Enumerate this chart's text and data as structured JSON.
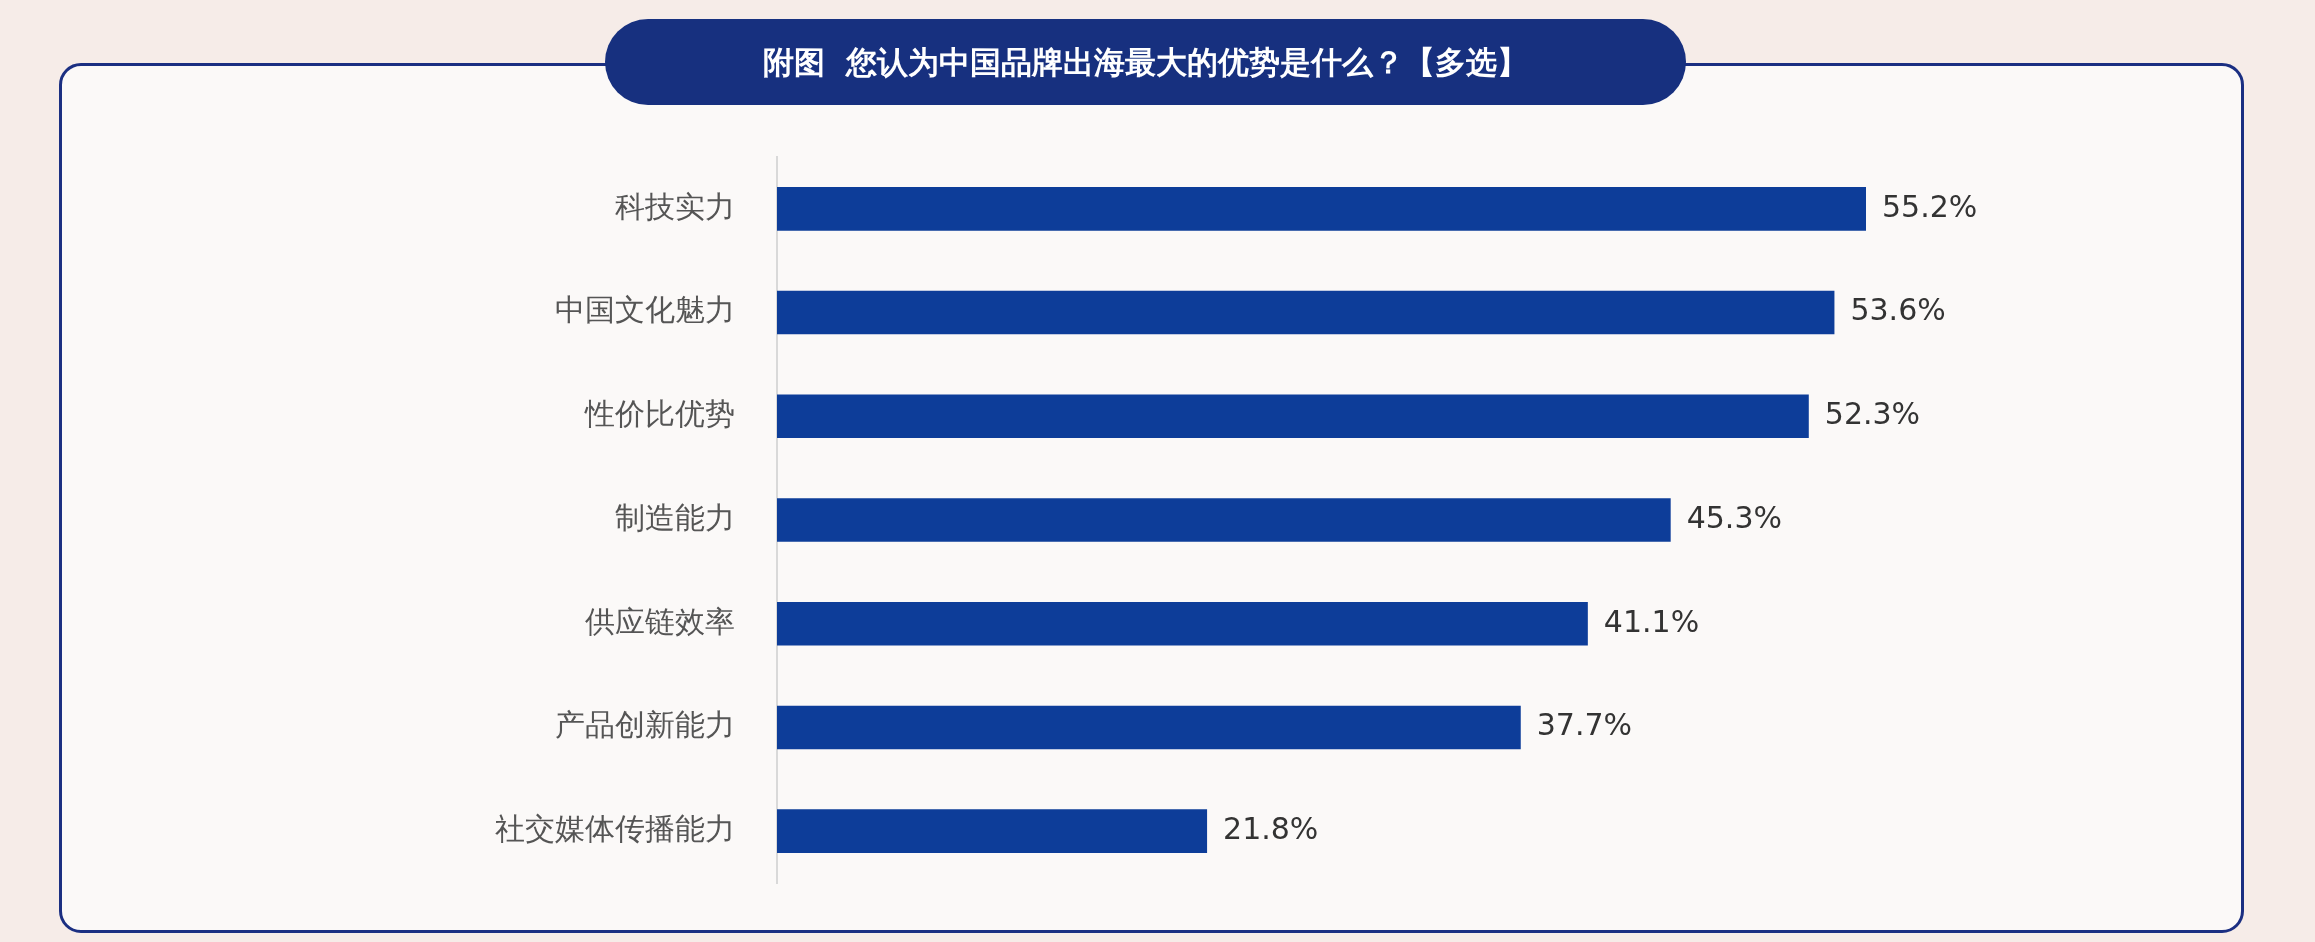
{
  "chart_data": {
    "type": "bar",
    "orientation": "horizontal",
    "title": "附图  您认为中国品牌出海最大的优势是什么？【多选】",
    "categories": [
      "科技实力",
      "中国文化魅力",
      "性价比优势",
      "制造能力",
      "供应链效率",
      "产品创新能力",
      "社交媒体传播能力"
    ],
    "values": [
      55.2,
      53.6,
      52.3,
      45.3,
      41.1,
      37.7,
      21.8
    ],
    "value_labels": [
      "55.2%",
      "53.6%",
      "52.3%",
      "45.3%",
      "41.1%",
      "37.7%",
      "21.8%"
    ],
    "color": "#0d3d99"
  }
}
